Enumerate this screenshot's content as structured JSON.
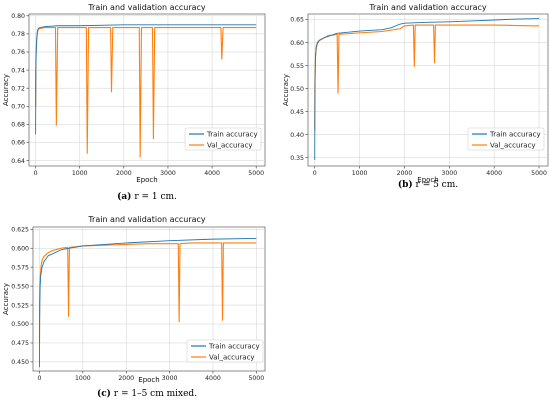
{
  "chart_data": [
    {
      "type": "line",
      "panel_label": "(a)",
      "caption_rest": " r = 1 cm.",
      "title": "Train and validation accuracy",
      "xlabel": "Epoch",
      "ylabel": "Accuracy",
      "xlim": [
        -150,
        5200
      ],
      "ylim": [
        0.634,
        0.802
      ],
      "xticks": [
        0,
        1000,
        2000,
        3000,
        4000,
        5000
      ],
      "xtick_labels": [
        "0",
        "1000",
        "2000",
        "3000",
        "4000",
        "5000"
      ],
      "yticks": [
        0.64,
        0.66,
        0.68,
        0.7,
        0.72,
        0.74,
        0.76,
        0.78,
        0.8
      ],
      "ytick_labels": [
        "0.64",
        "0.66",
        "0.68",
        "0.70",
        "0.72",
        "0.74",
        "0.76",
        "0.78",
        "0.80"
      ],
      "grid": true,
      "legend_position": "lower-right",
      "series": [
        {
          "name": "Train accuracy",
          "color": "#1f77b4",
          "x": [
            0,
            3,
            8,
            15,
            25,
            40,
            60,
            100,
            200,
            500,
            1000,
            2000,
            3000,
            4000,
            5000
          ],
          "y": [
            0.669,
            0.72,
            0.75,
            0.76,
            0.775,
            0.783,
            0.786,
            0.787,
            0.788,
            0.789,
            0.789,
            0.79,
            0.79,
            0.79,
            0.79
          ]
        },
        {
          "name": "Val_accuracy",
          "color": "#ff7f0e",
          "x": [
            0,
            2,
            5,
            10,
            20,
            40,
            60,
            100,
            200,
            300,
            450,
            470,
            500,
            700,
            900,
            1150,
            1170,
            1200,
            1400,
            1700,
            1720,
            1750,
            2000,
            2350,
            2370,
            2400,
            2650,
            2670,
            2700,
            3000,
            3500,
            4000,
            4200,
            4220,
            4250,
            4600,
            5000
          ],
          "y": [
            0.74,
            0.7,
            0.75,
            0.762,
            0.77,
            0.781,
            0.785,
            0.786,
            0.787,
            0.787,
            0.787,
            0.679,
            0.787,
            0.787,
            0.787,
            0.787,
            0.648,
            0.787,
            0.787,
            0.787,
            0.716,
            0.787,
            0.787,
            0.787,
            0.644,
            0.787,
            0.787,
            0.664,
            0.787,
            0.787,
            0.787,
            0.787,
            0.787,
            0.752,
            0.787,
            0.787,
            0.787
          ]
        }
      ]
    },
    {
      "type": "line",
      "panel_label": "(b)",
      "caption_rest": " r = 5 cm.",
      "title": "Train and validation accuracy",
      "xlabel": "Epoch",
      "ylabel": "Accuracy",
      "xlim": [
        -150,
        5200
      ],
      "ylim": [
        0.332,
        0.662
      ],
      "xticks": [
        0,
        1000,
        2000,
        3000,
        4000,
        5000
      ],
      "xtick_labels": [
        "0",
        "1000",
        "2000",
        "3000",
        "4000",
        "5000"
      ],
      "yticks": [
        0.35,
        0.4,
        0.45,
        0.5,
        0.55,
        0.6,
        0.65
      ],
      "ytick_labels": [
        "0.35",
        "0.40",
        "0.45",
        "0.50",
        "0.55",
        "0.60",
        "0.65"
      ],
      "grid": true,
      "legend_position": "lower-right",
      "series": [
        {
          "name": "Train accuracy",
          "color": "#1f77b4",
          "x": [
            0,
            3,
            8,
            15,
            30,
            60,
            100,
            200,
            500,
            1000,
            1500,
            1700,
            1900,
            2000,
            2500,
            3000,
            3500,
            4000,
            4500,
            5000
          ],
          "y": [
            0.345,
            0.45,
            0.52,
            0.56,
            0.59,
            0.6,
            0.605,
            0.61,
            0.62,
            0.625,
            0.628,
            0.632,
            0.64,
            0.642,
            0.644,
            0.645,
            0.647,
            0.649,
            0.651,
            0.652
          ]
        },
        {
          "name": "Val_accuracy",
          "color": "#ff7f0e",
          "x": [
            0,
            2,
            5,
            10,
            20,
            40,
            60,
            100,
            200,
            300,
            500,
            520,
            540,
            1000,
            1500,
            1900,
            2000,
            2200,
            2220,
            2240,
            2500,
            2650,
            2670,
            2690,
            3000,
            3500,
            4000,
            4500,
            5000
          ],
          "y": [
            0.41,
            0.5,
            0.52,
            0.55,
            0.575,
            0.59,
            0.598,
            0.604,
            0.61,
            0.615,
            0.618,
            0.49,
            0.618,
            0.621,
            0.624,
            0.63,
            0.636,
            0.638,
            0.548,
            0.638,
            0.638,
            0.638,
            0.556,
            0.638,
            0.638,
            0.638,
            0.638,
            0.637,
            0.636
          ]
        }
      ]
    },
    {
      "type": "line",
      "panel_label": "(c)",
      "caption_rest": " r = 1–5 cm mixed.",
      "title": "Train and validation accuracy",
      "xlabel": "Epoch",
      "ylabel": "Accuracy",
      "xlim": [
        -150,
        5200
      ],
      "ylim": [
        0.438,
        0.628
      ],
      "xticks": [
        0,
        1000,
        2000,
        3000,
        4000,
        5000
      ],
      "xtick_labels": [
        "0",
        "1000",
        "2000",
        "3000",
        "4000",
        "5000"
      ],
      "yticks": [
        0.45,
        0.475,
        0.5,
        0.525,
        0.55,
        0.575,
        0.6,
        0.625
      ],
      "ytick_labels": [
        "0.450",
        "0.475",
        "0.500",
        "0.525",
        "0.550",
        "0.575",
        "0.600",
        "0.625"
      ],
      "grid": true,
      "legend_position": "lower-right",
      "series": [
        {
          "name": "Train accuracy",
          "color": "#1f77b4",
          "x": [
            0,
            3,
            8,
            15,
            30,
            60,
            100,
            200,
            500,
            1000,
            2000,
            3000,
            4000,
            5000
          ],
          "y": [
            0.443,
            0.5,
            0.53,
            0.55,
            0.565,
            0.575,
            0.582,
            0.59,
            0.598,
            0.603,
            0.607,
            0.61,
            0.612,
            0.613
          ]
        },
        {
          "name": "Val_accuracy",
          "color": "#ff7f0e",
          "x": [
            0,
            2,
            5,
            10,
            20,
            40,
            60,
            100,
            200,
            300,
            500,
            650,
            670,
            690,
            1000,
            1500,
            2000,
            2500,
            3000,
            3200,
            3220,
            3240,
            3500,
            4000,
            4200,
            4220,
            4240,
            4600,
            5000
          ],
          "y": [
            0.475,
            0.52,
            0.54,
            0.555,
            0.565,
            0.578,
            0.584,
            0.589,
            0.594,
            0.597,
            0.6,
            0.601,
            0.51,
            0.601,
            0.603,
            0.604,
            0.605,
            0.606,
            0.606,
            0.606,
            0.503,
            0.606,
            0.607,
            0.607,
            0.607,
            0.505,
            0.607,
            0.607,
            0.607
          ]
        }
      ]
    }
  ]
}
